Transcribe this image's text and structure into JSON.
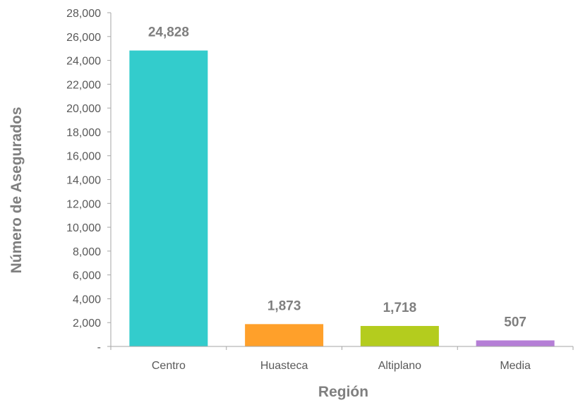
{
  "chart_data": {
    "type": "bar",
    "title": "",
    "xlabel": "Región",
    "ylabel": "Número de Asegurados",
    "categories": [
      "Centro",
      "Huasteca",
      "Altiplano",
      "Media"
    ],
    "values": [
      24828,
      1873,
      1718,
      507
    ],
    "data_labels": [
      "24,828",
      "1,873",
      "1,718",
      "507"
    ],
    "colors": [
      "#33cccc",
      "#ffa02a",
      "#b4cc1e",
      "#b57ed6"
    ],
    "ylim": [
      0,
      28000
    ],
    "yticks": [
      0,
      2000,
      4000,
      6000,
      8000,
      10000,
      12000,
      14000,
      16000,
      18000,
      20000,
      22000,
      24000,
      26000,
      28000
    ],
    "ytick_labels": [
      "-",
      "2,000",
      "4,000",
      "6,000",
      "8,000",
      "10,000",
      "12,000",
      "14,000",
      "16,000",
      "18,000",
      "20,000",
      "22,000",
      "24,000",
      "26,000",
      "28,000"
    ],
    "grid": false,
    "legend": "none",
    "axis_color": "#a6a6a6"
  }
}
